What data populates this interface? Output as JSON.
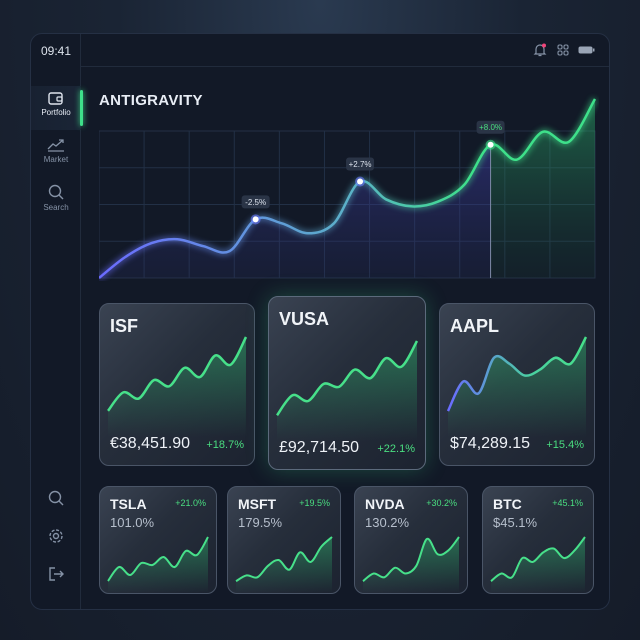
{
  "status_bar": {
    "time": "09:41",
    "icons": [
      "bell-icon",
      "grid-icon",
      "battery-icon"
    ]
  },
  "sidebar": {
    "items": [
      {
        "label": "Portfolio",
        "icon": "wallet-icon",
        "active": true
      },
      {
        "label": "Market",
        "icon": "trend-icon"
      },
      {
        "label": "Search",
        "icon": "search-icon"
      }
    ],
    "bottom_icons": [
      "search-icon",
      "gear-icon",
      "logout-icon"
    ]
  },
  "main": {
    "title": "ANTIGRAVITY",
    "chart": {
      "values": [
        0,
        21,
        35,
        39,
        32,
        27,
        59,
        55,
        45,
        55,
        97,
        79,
        72,
        77,
        94,
        134,
        119,
        147,
        137,
        180
      ],
      "markers": [
        {
          "index": 6,
          "label": "-2.5%"
        },
        {
          "index": 10,
          "label": "+2.7%"
        },
        {
          "index": 15,
          "label": "+8.0%"
        }
      ],
      "colors": {
        "start": "#6b6bff",
        "end": "#3ee08a"
      }
    }
  },
  "cards": [
    {
      "ticker": "ISF",
      "value": "€38,451.90",
      "change": "+18.7%",
      "spark": [
        2,
        8,
        6,
        12,
        10,
        16,
        13,
        20,
        17,
        26
      ]
    },
    {
      "ticker": "VUSA",
      "value": "£92,714.50",
      "change": "+22.1%",
      "spark": [
        2,
        9,
        7,
        13,
        12,
        18,
        15,
        22,
        19,
        28
      ]
    },
    {
      "ticker": "AAPL",
      "value": "$74,289.15",
      "change": "+15.4%",
      "spark": [
        2,
        12,
        8,
        20,
        18,
        14,
        16,
        20,
        18,
        27
      ]
    }
  ],
  "small_cards": [
    {
      "ticker": "TSLA",
      "value": "101.0%",
      "change": "+21.0%",
      "spark": [
        2,
        9,
        5,
        11,
        10,
        14,
        9,
        17,
        15,
        24
      ]
    },
    {
      "ticker": "MSFT",
      "value": "179.5%",
      "change": "+19.5%",
      "spark": [
        2,
        5,
        4,
        10,
        13,
        8,
        17,
        12,
        20,
        25
      ]
    },
    {
      "ticker": "NVDA",
      "value": "130.2%",
      "change": "+30.2%",
      "spark": [
        2,
        6,
        4,
        9,
        6,
        10,
        24,
        16,
        18,
        25
      ]
    },
    {
      "ticker": "BTC",
      "value": "$45.1%",
      "change": "+45.1%",
      "spark": [
        2,
        6,
        4,
        14,
        12,
        17,
        19,
        14,
        18,
        25
      ]
    }
  ]
}
